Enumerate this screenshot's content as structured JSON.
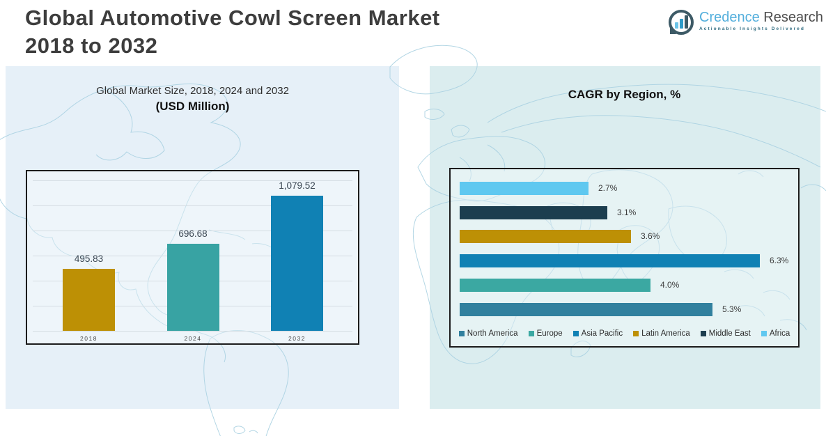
{
  "header": {
    "title_line1": "Global Automotive Cowl Screen Market",
    "title_line2": "2018 to 2032",
    "logo": {
      "brand_primary": "Credence",
      "brand_secondary": "Research",
      "tagline": "Actionable Insights Delivered",
      "brand_color": "#52AEDC",
      "mark_color": "#3D5A66"
    }
  },
  "left_chart": {
    "title": "Global Market Size, 2018, 2024 and 2032",
    "subtitle": "(USD Million)"
  },
  "right_chart": {
    "title": "CAGR by Region, %"
  },
  "chart_data": [
    {
      "type": "bar",
      "orientation": "vertical",
      "title": "Global Market Size, 2018, 2024 and 2032 (USD Million)",
      "categories": [
        "2018",
        "2024",
        "2032"
      ],
      "values": [
        495.83,
        696.68,
        1079.52
      ],
      "value_labels": [
        "495.83",
        "696.68",
        "1,079.52"
      ],
      "colors": [
        "#BD9005",
        "#38A3A3",
        "#1081B4"
      ],
      "ylim": [
        0,
        1150
      ],
      "grid": true
    },
    {
      "type": "bar",
      "orientation": "horizontal",
      "title": "CAGR by Region, %",
      "categories": [
        "Africa",
        "Middle East",
        "Latin America",
        "Asia Pacific",
        "Europe",
        "North America"
      ],
      "values": [
        2.7,
        3.1,
        3.6,
        6.3,
        4.0,
        5.3
      ],
      "value_labels": [
        "2.7%",
        "3.1%",
        "3.6%",
        "6.3%",
        "4.0%",
        "5.3%"
      ],
      "colors": [
        "#5FC8F0",
        "#1C3E4F",
        "#BD9005",
        "#1081B4",
        "#3BA8A2",
        "#31809E"
      ],
      "xlim": [
        0,
        6.6
      ],
      "grid": false,
      "legend_position": "bottom",
      "legend": [
        {
          "label": "North America",
          "color": "#31809E"
        },
        {
          "label": "Europe",
          "color": "#3BA8A2"
        },
        {
          "label": "Asia Pacific",
          "color": "#1081B4"
        },
        {
          "label": "Latin America",
          "color": "#BD9005"
        },
        {
          "label": "Middle East",
          "color": "#1C3E4F"
        },
        {
          "label": "Africa",
          "color": "#5FC8F0"
        }
      ]
    }
  ]
}
